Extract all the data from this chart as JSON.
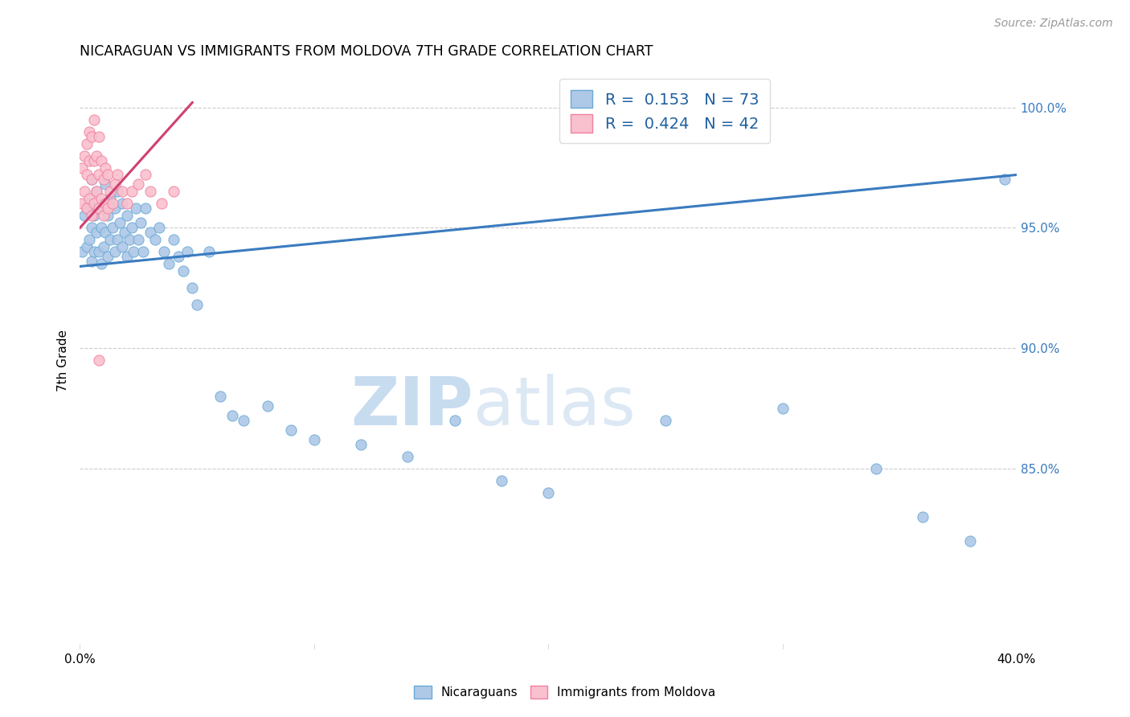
{
  "title": "NICARAGUAN VS IMMIGRANTS FROM MOLDOVA 7TH GRADE CORRELATION CHART",
  "source": "Source: ZipAtlas.com",
  "ylabel": "7th Grade",
  "xmin": 0.0,
  "xmax": 0.4,
  "ymin": 0.775,
  "ymax": 1.015,
  "R_blue": 0.153,
  "N_blue": 73,
  "R_pink": 0.424,
  "N_pink": 42,
  "blue_color": "#aec8e8",
  "blue_edge_color": "#6aaad4",
  "blue_line_color": "#3a7bbf",
  "pink_color": "#f9c0ce",
  "pink_edge_color": "#f080a0",
  "pink_line_color": "#d04070",
  "watermark_zip": "ZIP",
  "watermark_atlas": "atlas",
  "blue_scatter_x": [
    0.001,
    0.002,
    0.003,
    0.003,
    0.004,
    0.004,
    0.005,
    0.005,
    0.005,
    0.006,
    0.006,
    0.007,
    0.007,
    0.008,
    0.008,
    0.009,
    0.009,
    0.01,
    0.01,
    0.011,
    0.011,
    0.012,
    0.012,
    0.013,
    0.013,
    0.014,
    0.015,
    0.015,
    0.016,
    0.016,
    0.017,
    0.018,
    0.018,
    0.019,
    0.02,
    0.02,
    0.021,
    0.022,
    0.023,
    0.024,
    0.025,
    0.026,
    0.027,
    0.028,
    0.03,
    0.032,
    0.034,
    0.036,
    0.038,
    0.04,
    0.042,
    0.044,
    0.046,
    0.048,
    0.05,
    0.055,
    0.06,
    0.065,
    0.07,
    0.08,
    0.09,
    0.1,
    0.12,
    0.14,
    0.16,
    0.18,
    0.2,
    0.25,
    0.3,
    0.34,
    0.36,
    0.38,
    0.395
  ],
  "blue_scatter_y": [
    0.94,
    0.955,
    0.942,
    0.958,
    0.945,
    0.96,
    0.936,
    0.95,
    0.97,
    0.94,
    0.955,
    0.948,
    0.965,
    0.94,
    0.958,
    0.935,
    0.95,
    0.942,
    0.96,
    0.948,
    0.968,
    0.938,
    0.955,
    0.945,
    0.962,
    0.95,
    0.94,
    0.958,
    0.945,
    0.965,
    0.952,
    0.942,
    0.96,
    0.948,
    0.938,
    0.955,
    0.945,
    0.95,
    0.94,
    0.958,
    0.945,
    0.952,
    0.94,
    0.958,
    0.948,
    0.945,
    0.95,
    0.94,
    0.935,
    0.945,
    0.938,
    0.932,
    0.94,
    0.925,
    0.918,
    0.94,
    0.88,
    0.872,
    0.87,
    0.876,
    0.866,
    0.862,
    0.86,
    0.855,
    0.87,
    0.845,
    0.84,
    0.87,
    0.875,
    0.85,
    0.83,
    0.82,
    0.97
  ],
  "pink_scatter_x": [
    0.001,
    0.001,
    0.002,
    0.002,
    0.003,
    0.003,
    0.003,
    0.004,
    0.004,
    0.004,
    0.005,
    0.005,
    0.005,
    0.006,
    0.006,
    0.006,
    0.007,
    0.007,
    0.008,
    0.008,
    0.008,
    0.009,
    0.009,
    0.01,
    0.01,
    0.011,
    0.011,
    0.012,
    0.012,
    0.013,
    0.014,
    0.015,
    0.016,
    0.018,
    0.02,
    0.022,
    0.025,
    0.028,
    0.03,
    0.035,
    0.04,
    0.008
  ],
  "pink_scatter_y": [
    0.96,
    0.975,
    0.965,
    0.98,
    0.958,
    0.972,
    0.985,
    0.962,
    0.978,
    0.99,
    0.955,
    0.97,
    0.988,
    0.96,
    0.978,
    0.995,
    0.965,
    0.98,
    0.958,
    0.972,
    0.988,
    0.962,
    0.978,
    0.955,
    0.97,
    0.96,
    0.975,
    0.958,
    0.972,
    0.965,
    0.96,
    0.968,
    0.972,
    0.965,
    0.96,
    0.965,
    0.968,
    0.972,
    0.965,
    0.96,
    0.965,
    0.895
  ],
  "blue_line_x0": 0.0,
  "blue_line_x1": 0.4,
  "blue_line_y0": 0.934,
  "blue_line_y1": 0.972,
  "pink_line_x0": 0.0,
  "pink_line_x1": 0.048,
  "pink_line_y0": 0.95,
  "pink_line_y1": 1.002
}
